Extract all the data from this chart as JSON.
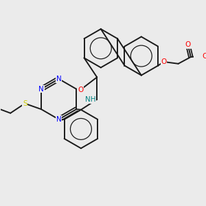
{
  "background_color": "#ebebeb",
  "bond_color": "#1a1a1a",
  "n_color": "#0000ff",
  "o_color": "#ff0000",
  "s_color": "#cccc00",
  "nh_color": "#008080",
  "figsize": [
    3.0,
    3.0
  ],
  "dpi": 100,
  "xlim": [
    0,
    10
  ],
  "ylim": [
    0,
    10
  ]
}
